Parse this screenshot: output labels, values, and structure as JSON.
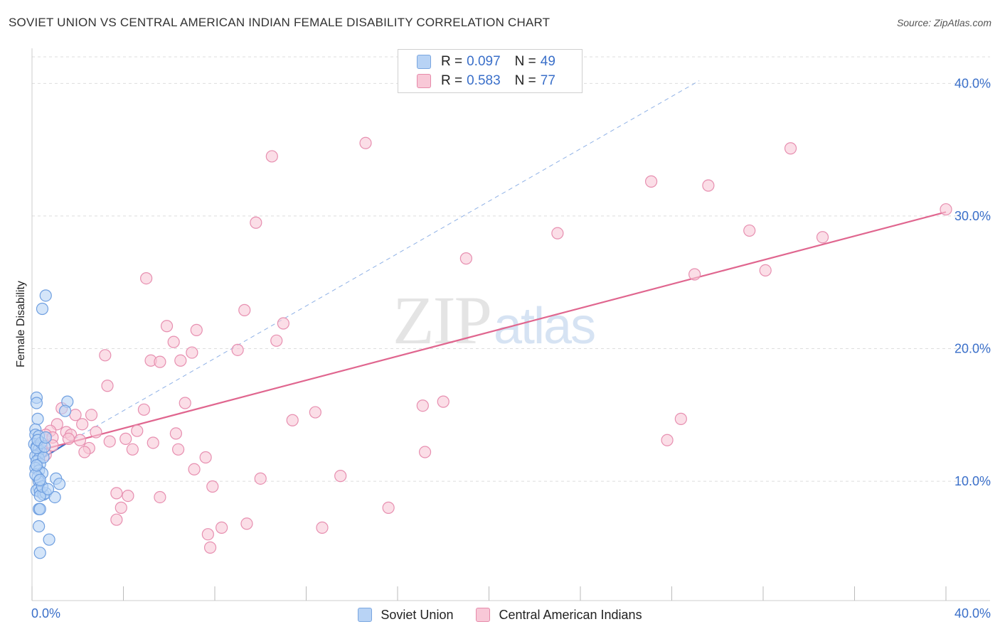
{
  "header": {
    "title": "SOVIET UNION VS CENTRAL AMERICAN INDIAN FEMALE DISABILITY CORRELATION CHART",
    "source": "Source: ZipAtlas.com"
  },
  "watermark": {
    "zip": "ZIP",
    "atlas": "atlas"
  },
  "legend": {
    "rows": [
      {
        "r_label": "R =",
        "r": "0.097",
        "n_label": "N =",
        "n": "49",
        "color": "#b8d3f5",
        "border": "#7aa6e0"
      },
      {
        "r_label": "R =",
        "r": "0.583",
        "n_label": "N =",
        "n": "77",
        "color": "#f8c8d7",
        "border": "#e68aaa"
      }
    ]
  },
  "bottom_legend": [
    {
      "label": "Soviet Union",
      "color": "#b8d3f5",
      "border": "#7aa6e0"
    },
    {
      "label": "Central American Indians",
      "color": "#f8c8d7",
      "border": "#e68aaa"
    }
  ],
  "chart_data": {
    "type": "scatter",
    "title": "SOVIET UNION VS CENTRAL AMERICAN INDIAN FEMALE DISABILITY CORRELATION CHART",
    "xlabel": "",
    "ylabel": "Female Disability",
    "xlim": [
      0,
      40
    ],
    "ylim": [
      1,
      42
    ],
    "x_tick_labels": [
      "0.0%",
      "40.0%"
    ],
    "y_ticks": [
      10,
      20,
      30,
      40
    ],
    "y_tick_labels": [
      "10.0%",
      "20.0%",
      "30.0%",
      "40.0%"
    ],
    "grid": true,
    "series": [
      {
        "name": "Soviet Union",
        "color": "#6f9fe0",
        "fill": "#b8d3f5",
        "points": [
          [
            0.6,
            24.0
          ],
          [
            0.45,
            23.0
          ],
          [
            0.2,
            16.3
          ],
          [
            0.2,
            15.9
          ],
          [
            1.55,
            16.0
          ],
          [
            1.45,
            15.3
          ],
          [
            0.25,
            14.7
          ],
          [
            0.15,
            13.9
          ],
          [
            0.15,
            13.5
          ],
          [
            0.3,
            13.4
          ],
          [
            0.1,
            12.8
          ],
          [
            0.2,
            12.6
          ],
          [
            0.3,
            12.4
          ],
          [
            0.4,
            12.2
          ],
          [
            0.25,
            12.0
          ],
          [
            0.15,
            11.9
          ],
          [
            0.3,
            11.7
          ],
          [
            0.2,
            11.5
          ],
          [
            0.35,
            11.3
          ],
          [
            0.15,
            11.0
          ],
          [
            0.3,
            10.8
          ],
          [
            0.45,
            10.6
          ],
          [
            0.25,
            10.3
          ],
          [
            0.3,
            10.0
          ],
          [
            1.05,
            10.2
          ],
          [
            1.2,
            9.8
          ],
          [
            0.3,
            9.5
          ],
          [
            0.2,
            9.3
          ],
          [
            0.35,
            9.2
          ],
          [
            0.5,
            9.0
          ],
          [
            0.6,
            9.1
          ],
          [
            0.35,
            8.9
          ],
          [
            1.0,
            8.8
          ],
          [
            0.3,
            7.9
          ],
          [
            0.35,
            7.9
          ],
          [
            0.3,
            6.6
          ],
          [
            0.75,
            5.6
          ],
          [
            0.35,
            4.6
          ],
          [
            0.2,
            12.5
          ],
          [
            0.4,
            12.9
          ],
          [
            0.25,
            13.1
          ],
          [
            0.5,
            11.8
          ],
          [
            0.15,
            10.5
          ],
          [
            0.45,
            9.6
          ],
          [
            0.7,
            9.4
          ],
          [
            0.55,
            12.6
          ],
          [
            0.2,
            11.2
          ],
          [
            0.6,
            13.3
          ],
          [
            0.35,
            10.1
          ]
        ]
      },
      {
        "name": "Central American Indians",
        "color": "#e78fb0",
        "fill": "#f8c8d7",
        "points": [
          [
            14.6,
            35.5
          ],
          [
            10.5,
            34.5
          ],
          [
            33.2,
            35.1
          ],
          [
            9.8,
            29.5
          ],
          [
            27.1,
            32.6
          ],
          [
            29.6,
            32.3
          ],
          [
            23.0,
            28.7
          ],
          [
            19.0,
            26.8
          ],
          [
            31.4,
            28.9
          ],
          [
            34.6,
            28.4
          ],
          [
            40.0,
            30.5
          ],
          [
            29.0,
            25.6
          ],
          [
            32.1,
            25.9
          ],
          [
            5.0,
            25.3
          ],
          [
            9.3,
            22.9
          ],
          [
            11.0,
            21.9
          ],
          [
            5.9,
            21.7
          ],
          [
            7.2,
            21.4
          ],
          [
            6.2,
            20.5
          ],
          [
            10.7,
            20.6
          ],
          [
            3.2,
            19.5
          ],
          [
            9.0,
            19.9
          ],
          [
            7.0,
            19.7
          ],
          [
            5.2,
            19.1
          ],
          [
            5.6,
            19.0
          ],
          [
            6.5,
            19.1
          ],
          [
            3.3,
            17.2
          ],
          [
            18.0,
            16.0
          ],
          [
            6.7,
            15.9
          ],
          [
            17.1,
            15.7
          ],
          [
            12.4,
            15.2
          ],
          [
            4.9,
            15.4
          ],
          [
            1.3,
            15.5
          ],
          [
            2.6,
            15.0
          ],
          [
            1.9,
            15.0
          ],
          [
            11.4,
            14.6
          ],
          [
            28.4,
            14.7
          ],
          [
            1.1,
            14.3
          ],
          [
            2.2,
            14.3
          ],
          [
            4.6,
            13.8
          ],
          [
            6.3,
            13.6
          ],
          [
            0.8,
            13.8
          ],
          [
            1.5,
            13.7
          ],
          [
            1.7,
            13.5
          ],
          [
            2.8,
            13.7
          ],
          [
            0.6,
            13.5
          ],
          [
            0.9,
            13.3
          ],
          [
            1.6,
            13.2
          ],
          [
            3.4,
            13.0
          ],
          [
            4.1,
            13.2
          ],
          [
            5.3,
            12.9
          ],
          [
            27.8,
            13.1
          ],
          [
            2.5,
            12.5
          ],
          [
            4.4,
            12.4
          ],
          [
            6.4,
            12.4
          ],
          [
            2.3,
            12.2
          ],
          [
            17.2,
            12.2
          ],
          [
            7.6,
            11.8
          ],
          [
            0.4,
            12.4
          ],
          [
            0.6,
            12.0
          ],
          [
            7.1,
            10.9
          ],
          [
            13.5,
            10.4
          ],
          [
            10.0,
            10.2
          ],
          [
            7.9,
            9.6
          ],
          [
            3.7,
            9.1
          ],
          [
            4.2,
            8.9
          ],
          [
            5.6,
            8.8
          ],
          [
            15.6,
            8.0
          ],
          [
            3.9,
            8.0
          ],
          [
            3.7,
            7.1
          ],
          [
            9.4,
            6.8
          ],
          [
            12.7,
            6.5
          ],
          [
            8.3,
            6.5
          ],
          [
            7.7,
            6.0
          ],
          [
            7.8,
            5.0
          ],
          [
            0.9,
            12.7
          ],
          [
            2.1,
            13.1
          ]
        ]
      }
    ],
    "trend_lines": [
      {
        "series": "Soviet Union",
        "x": [
          0.05,
          1.55
        ],
        "y": [
          11.3,
          12.9
        ],
        "style": "solid"
      },
      {
        "series": "Soviet Union",
        "x": [
          1.55,
          29.2
        ],
        "y": [
          12.9,
          40.2
        ],
        "style": "dashed"
      },
      {
        "series": "Central American Indians",
        "x": [
          0.05,
          40.0
        ],
        "y": [
          12.2,
          30.3
        ],
        "style": "solid"
      }
    ]
  }
}
